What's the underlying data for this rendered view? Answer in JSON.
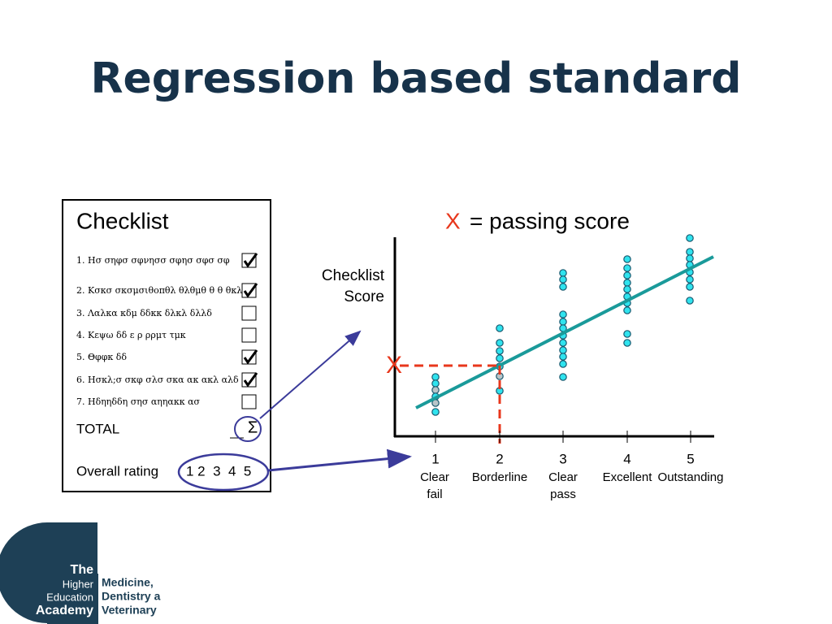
{
  "title": "Regression based standard",
  "checklist": {
    "heading": "Checklist",
    "items": [
      "1. Ησ σηφσ σφνησσ σφησ σφσ  σφ",
      "2. Κσκσ σκσμσιθοπθλ θλθμθ θ θ  θκλ",
      "3. Λαλκα κδμ δδκκ δλκλ δλλδ",
      "4. Κεψω δδ ε ρ ρρμτ τμκ",
      "5. Θφφκ δδ",
      "6. Ησκλ;σ  σκφ σλσ σκα  ακ ακλ  αλδ",
      "7. Ηδηηδδη σησ αηηακκ ασ"
    ],
    "checked": [
      true,
      true,
      false,
      false,
      true,
      true,
      false
    ],
    "total_label": "TOTAL",
    "total_symbol": "Σ",
    "rating_label": "Overall rating",
    "rating_scale": "1 2  3  4  5"
  },
  "graph": {
    "legend_mark": "X",
    "legend_text": "= passing score",
    "y_label": [
      "Checklist",
      "Score"
    ],
    "cut_mark": "X",
    "categories": [
      {
        "number": "1",
        "label": [
          "Clear",
          "fail"
        ]
      },
      {
        "number": "2",
        "label": [
          "Borderline"
        ]
      },
      {
        "number": "3",
        "label": [
          "Clear",
          "pass"
        ]
      },
      {
        "number": "4",
        "label": [
          "Excellent"
        ]
      },
      {
        "number": "5",
        "label": [
          "Outstanding"
        ]
      }
    ]
  },
  "logo": {
    "lines": [
      "The",
      "Higher",
      "Education",
      "Academy"
    ],
    "partner": [
      "Medicine,",
      "Dentistry a",
      "Veterinary"
    ]
  }
}
